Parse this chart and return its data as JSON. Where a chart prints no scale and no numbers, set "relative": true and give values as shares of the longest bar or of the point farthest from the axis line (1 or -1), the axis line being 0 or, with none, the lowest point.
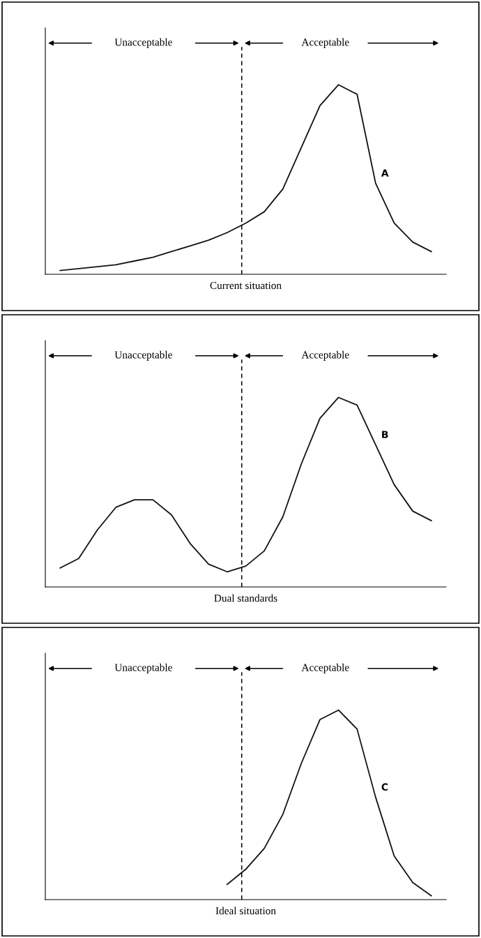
{
  "chart_data": [
    {
      "type": "line",
      "relative": true,
      "xlabel": "Current situation",
      "categories": [
        null,
        null,
        null,
        null,
        null,
        null,
        null,
        null,
        null,
        null,
        null,
        null,
        null,
        null,
        null,
        null,
        null,
        null,
        null,
        null,
        null
      ],
      "series": [
        {
          "name": "A",
          "color": "#111111",
          "values": [
            0.02,
            0.03,
            0.04,
            0.05,
            0.07,
            0.09,
            0.12,
            0.15,
            0.18,
            0.22,
            0.27,
            0.33,
            0.45,
            0.67,
            0.89,
            1.0,
            0.95,
            0.48,
            0.27,
            0.17,
            0.12
          ]
        }
      ],
      "annotations": [
        "Unacceptable",
        "Acceptable"
      ]
    },
    {
      "type": "line",
      "relative": true,
      "xlabel": "Dual standards",
      "categories": [
        null,
        null,
        null,
        null,
        null,
        null,
        null,
        null,
        null,
        null,
        null,
        null,
        null,
        null,
        null,
        null,
        null,
        null,
        null,
        null,
        null
      ],
      "series": [
        {
          "name": "B",
          "color": "#111111",
          "values": [
            0.1,
            0.15,
            0.3,
            0.42,
            0.46,
            0.46,
            0.38,
            0.23,
            0.12,
            0.08,
            0.11,
            0.19,
            0.37,
            0.65,
            0.89,
            1.0,
            0.96,
            0.75,
            0.54,
            0.4,
            0.35
          ]
        }
      ],
      "annotations": [
        "Unacceptable",
        "Acceptable"
      ]
    },
    {
      "type": "line",
      "relative": true,
      "xlabel": "Ideal situation",
      "categories": [
        null,
        null,
        null,
        null,
        null,
        null,
        null,
        null,
        null,
        null,
        null,
        null,
        null,
        null,
        null,
        null,
        null,
        null,
        null,
        null,
        null
      ],
      "series": [
        {
          "name": "C",
          "color": "#111111",
          "values": [
            null,
            null,
            null,
            null,
            null,
            null,
            null,
            null,
            null,
            0.08,
            0.16,
            0.27,
            0.45,
            0.72,
            0.95,
            1.0,
            0.9,
            0.54,
            0.23,
            0.09,
            0.02
          ]
        }
      ],
      "annotations": [
        "Unacceptable",
        "Acceptable"
      ]
    }
  ]
}
